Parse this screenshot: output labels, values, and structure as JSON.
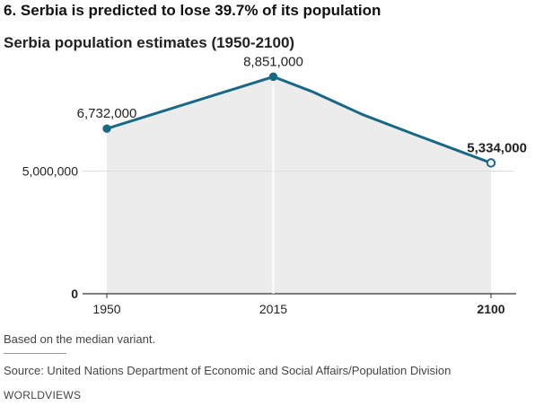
{
  "headline": "6. Serbia is predicted to lose 39.7% of its population",
  "chart_data": {
    "type": "area",
    "title": "Serbia population estimates (1950-2100)",
    "x": [
      1950,
      2015,
      2030,
      2050,
      2070,
      2100
    ],
    "values": [
      6732000,
      8851000,
      8250000,
      7300000,
      6500000,
      5334000
    ],
    "x_ticks": [
      {
        "value": 1950,
        "label": "1950",
        "bold": false
      },
      {
        "value": 2015,
        "label": "2015",
        "bold": false
      },
      {
        "value": 2100,
        "label": "2100",
        "bold": true
      }
    ],
    "y_ticks": [
      {
        "value": 0,
        "label": "0",
        "bold": true
      },
      {
        "value": 5000000,
        "label": "5,000,000",
        "bold": false
      }
    ],
    "annotations": [
      {
        "x": 1950,
        "value": 6732000,
        "label": "6,732,000",
        "marker": "filled",
        "bold": false
      },
      {
        "x": 2015,
        "value": 8851000,
        "label": "8,851,000",
        "marker": "filled",
        "bold": false
      },
      {
        "x": 2100,
        "value": 5334000,
        "label": "5,334,000",
        "marker": "open",
        "bold": true
      }
    ],
    "xlim": [
      1950,
      2100
    ],
    "ylim": [
      0,
      10000000
    ],
    "colors": {
      "line": "#186886",
      "area": "#ececec",
      "grid": "#dddddd"
    }
  },
  "note": "Based on the median variant.",
  "source": "Source: United Nations Department of Economic and Social Affairs/Population Division",
  "brand": "WORLDVIEWS"
}
